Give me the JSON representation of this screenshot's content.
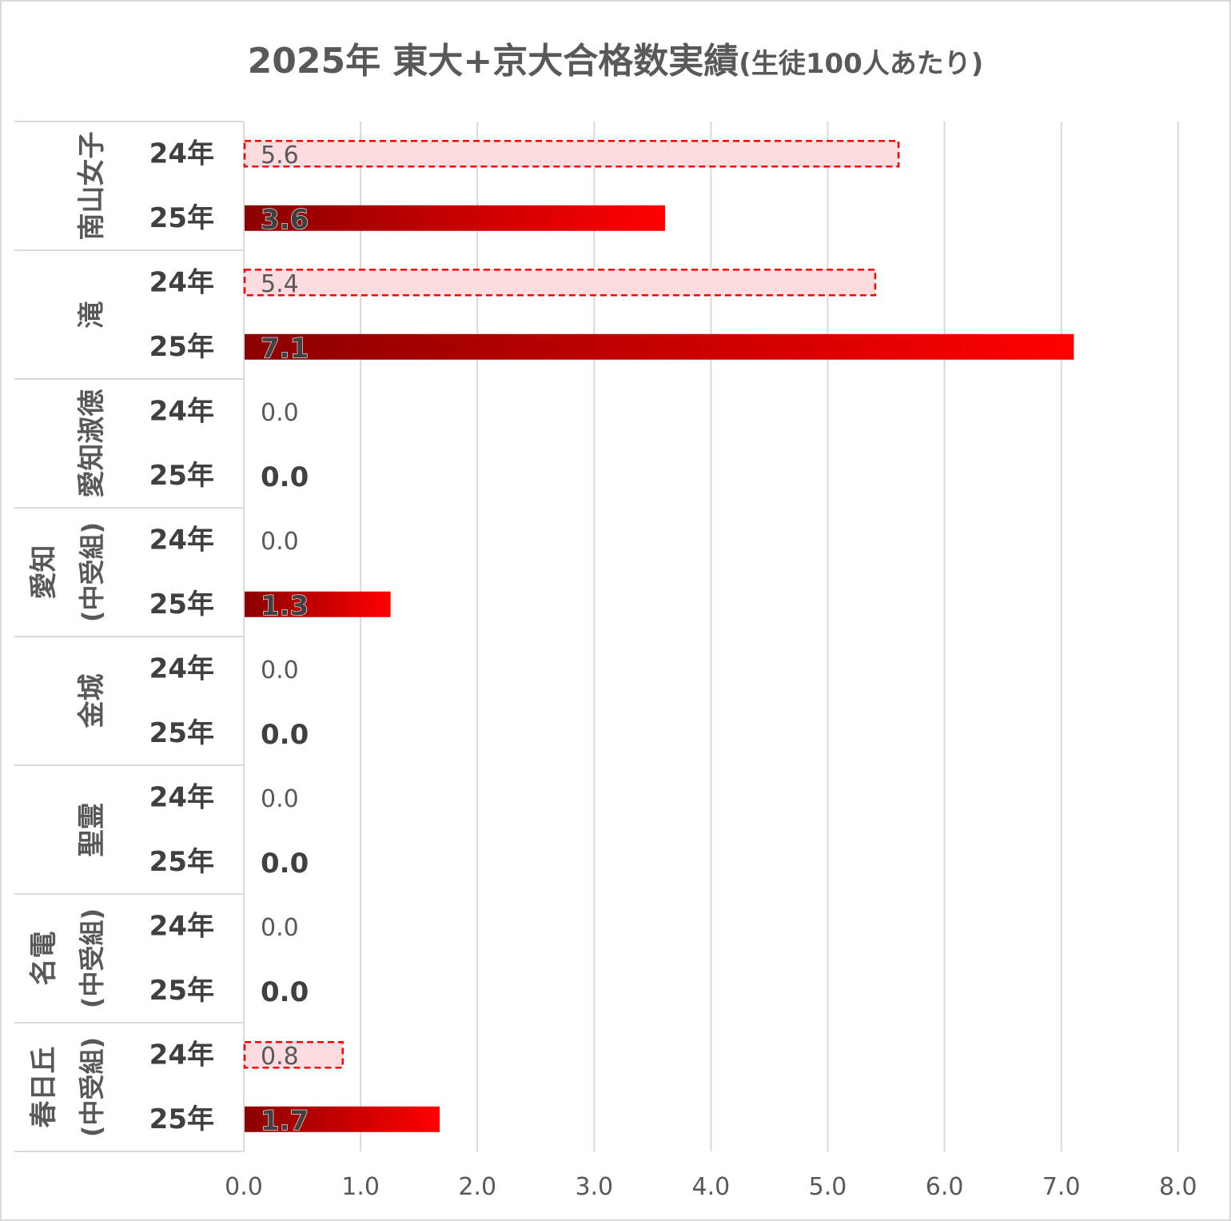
{
  "chart_data": {
    "type": "bar",
    "orientation": "horizontal",
    "title": "2025年 東大+京大合格数実績",
    "subtitle": "(生徒100人あたり)",
    "categories": [
      {
        "school": "南山女子",
        "school_lines": [
          "南山女子"
        ],
        "rows": [
          {
            "label": "24年",
            "value": 5.6,
            "display": "5.6"
          },
          {
            "label": "25年",
            "value": 3.6,
            "display": "3.6"
          }
        ]
      },
      {
        "school": "滝",
        "school_lines": [
          "滝"
        ],
        "rows": [
          {
            "label": "24年",
            "value": 5.4,
            "display": "5.4"
          },
          {
            "label": "25年",
            "value": 7.1,
            "display": "7.1"
          }
        ]
      },
      {
        "school": "愛知淑徳",
        "school_lines": [
          "愛知淑徳"
        ],
        "rows": [
          {
            "label": "24年",
            "value": 0.0,
            "display": "0.0"
          },
          {
            "label": "25年",
            "value": 0.0,
            "display": "0.0"
          }
        ]
      },
      {
        "school": "愛知(中受組)",
        "school_lines": [
          "愛知",
          "(中受組)"
        ],
        "rows": [
          {
            "label": "24年",
            "value": 0.0,
            "display": "0.0"
          },
          {
            "label": "25年",
            "value": 1.25,
            "display": "1.3"
          }
        ]
      },
      {
        "school": "金城",
        "school_lines": [
          "金城"
        ],
        "rows": [
          {
            "label": "24年",
            "value": 0.0,
            "display": "0.0"
          },
          {
            "label": "25年",
            "value": 0.0,
            "display": "0.0"
          }
        ]
      },
      {
        "school": "聖霊",
        "school_lines": [
          "聖霊"
        ],
        "rows": [
          {
            "label": "24年",
            "value": 0.0,
            "display": "0.0"
          },
          {
            "label": "25年",
            "value": 0.0,
            "display": "0.0"
          }
        ]
      },
      {
        "school": "名電(中受組)",
        "school_lines": [
          "名電",
          "(中受組)"
        ],
        "rows": [
          {
            "label": "24年",
            "value": 0.0,
            "display": "0.0"
          },
          {
            "label": "25年",
            "value": 0.0,
            "display": "0.0"
          }
        ]
      },
      {
        "school": "春日丘(中受組)",
        "school_lines": [
          "春日丘",
          "(中受組)"
        ],
        "rows": [
          {
            "label": "24年",
            "value": 0.84,
            "display": "0.8"
          },
          {
            "label": "25年",
            "value": 1.67,
            "display": "1.7"
          }
        ]
      }
    ],
    "x_ticks": [
      "0.0",
      "1.0",
      "2.0",
      "3.0",
      "4.0",
      "5.0",
      "6.0",
      "7.0",
      "8.0"
    ],
    "xlim": [
      0,
      8
    ],
    "grid": true,
    "legend": "none",
    "colors": {
      "bar_2024_fill": "#fcdcdf",
      "bar_2024_border": "#ff0000",
      "bar_2025_dark": "#8b0000",
      "bar_2025_light": "#ff0000",
      "gridline": "#d9d9d9"
    }
  }
}
